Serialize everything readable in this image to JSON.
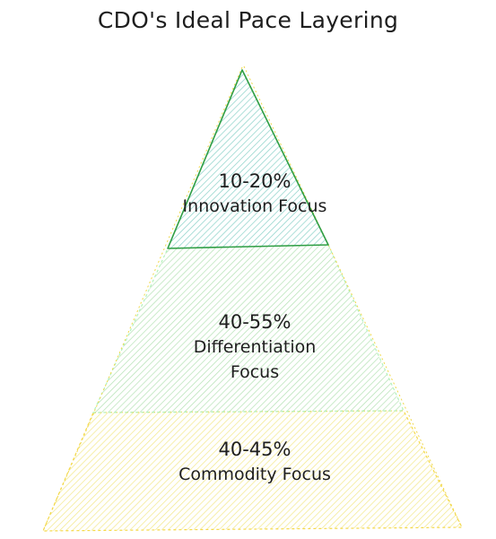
{
  "title": "CDO's Ideal Pace Layering",
  "colors": {
    "top_fill": "#63c2b5",
    "top_stroke": "#2f9e44",
    "middle_fill": "#8fd48f",
    "middle_stroke": "#b2f2bb",
    "bottom_fill": "#f2e66a",
    "bottom_stroke": "#f5d94a",
    "text": "#1e1e1e"
  },
  "layers": [
    {
      "percent": "10-20%",
      "label": "Innovation Focus"
    },
    {
      "percent": "40-55%",
      "label_line1": "Differentiation",
      "label_line2": "Focus"
    },
    {
      "percent": "40-45%",
      "label": "Commodity Focus"
    }
  ]
}
